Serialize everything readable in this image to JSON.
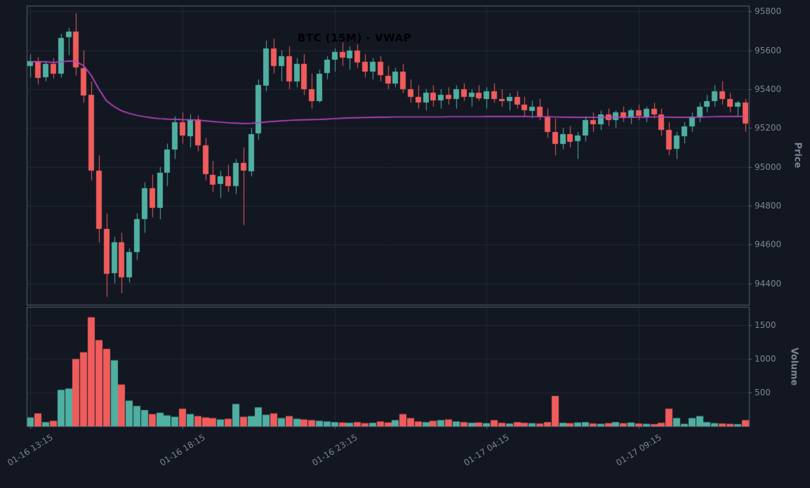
{
  "title": "BTC (15M) - VWAP",
  "colors": {
    "background": "#131722",
    "up": "#4fb0a2",
    "down": "#f05c5c",
    "vwap_line": "#b846c6",
    "grid": "#202836",
    "spine": "#596070",
    "tick_text": "#7d8494",
    "title_text": "#000000"
  },
  "chart_data": [
    {
      "type": "candlestick",
      "title": "BTC (15M) - VWAP",
      "ylabel": "Price",
      "ylabel_side": "right",
      "grid": true,
      "x_tick_labels": [
        "01-16 13:15",
        "01-16 18:15",
        "01-16 23:15",
        "01-17 04:15",
        "01-17 09:15"
      ],
      "x_tick_indices": [
        0,
        20,
        40,
        60,
        80
      ],
      "y_ticks": [
        94400,
        94600,
        94800,
        95000,
        95200,
        95400,
        95600,
        95800
      ],
      "ylim": [
        94290,
        95830
      ],
      "candles_ohlc": [
        [
          95520,
          95580,
          95460,
          95545
        ],
        [
          95545,
          95565,
          95425,
          95460
        ],
        [
          95460,
          95545,
          95440,
          95530
        ],
        [
          95530,
          95560,
          95455,
          95480
        ],
        [
          95480,
          95685,
          95460,
          95665
        ],
        [
          95665,
          95715,
          95575,
          95695
        ],
        [
          95695,
          95790,
          95470,
          95510
        ],
        [
          95510,
          95600,
          95330,
          95370
        ],
        [
          95370,
          95440,
          94930,
          94980
        ],
        [
          94980,
          95060,
          94610,
          94680
        ],
        [
          94680,
          94760,
          94330,
          94450
        ],
        [
          94450,
          94640,
          94400,
          94610
        ],
        [
          94610,
          94660,
          94350,
          94430
        ],
        [
          94430,
          94580,
          94405,
          94560
        ],
        [
          94560,
          94760,
          94520,
          94730
        ],
        [
          94730,
          94920,
          94660,
          94890
        ],
        [
          94890,
          94960,
          94740,
          94790
        ],
        [
          94790,
          95000,
          94730,
          94970
        ],
        [
          94970,
          95120,
          94900,
          95090
        ],
        [
          95090,
          95260,
          95040,
          95230
        ],
        [
          95230,
          95280,
          95120,
          95160
        ],
        [
          95160,
          95270,
          95100,
          95245
        ],
        [
          95245,
          95265,
          95080,
          95110
        ],
        [
          95110,
          95150,
          94930,
          94960
        ],
        [
          94960,
          95030,
          94870,
          94910
        ],
        [
          94910,
          94980,
          94840,
          94950
        ],
        [
          94950,
          95010,
          94870,
          94900
        ],
        [
          94900,
          95040,
          94860,
          95020
        ],
        [
          95020,
          95100,
          94700,
          94980
        ],
        [
          94980,
          95200,
          94950,
          95170
        ],
        [
          95170,
          95450,
          95140,
          95420
        ],
        [
          95420,
          95650,
          95390,
          95610
        ],
        [
          95610,
          95660,
          95480,
          95520
        ],
        [
          95520,
          95600,
          95440,
          95570
        ],
        [
          95570,
          95620,
          95400,
          95440
        ],
        [
          95440,
          95560,
          95410,
          95530
        ],
        [
          95530,
          95580,
          95370,
          95400
        ],
        [
          95400,
          95480,
          95300,
          95340
        ],
        [
          95340,
          95500,
          95330,
          95480
        ],
        [
          95480,
          95570,
          95450,
          95550
        ],
        [
          95550,
          95610,
          95490,
          95590
        ],
        [
          95590,
          95640,
          95520,
          95560
        ],
        [
          95560,
          95620,
          95500,
          95600
        ],
        [
          95600,
          95630,
          95510,
          95540
        ],
        [
          95540,
          95580,
          95460,
          95490
        ],
        [
          95490,
          95560,
          95450,
          95540
        ],
        [
          95540,
          95570,
          95440,
          95470
        ],
        [
          95470,
          95520,
          95400,
          95430
        ],
        [
          95430,
          95510,
          95410,
          95490
        ],
        [
          95490,
          95530,
          95380,
          95400
        ],
        [
          95400,
          95450,
          95330,
          95360
        ],
        [
          95360,
          95420,
          95300,
          95330
        ],
        [
          95330,
          95400,
          95290,
          95380
        ],
        [
          95380,
          95420,
          95310,
          95340
        ],
        [
          95340,
          95400,
          95300,
          95370
        ],
        [
          95370,
          95410,
          95320,
          95350
        ],
        [
          95350,
          95420,
          95300,
          95400
        ],
        [
          95400,
          95430,
          95340,
          95360
        ],
        [
          95360,
          95400,
          95310,
          95380
        ],
        [
          95380,
          95420,
          95340,
          95350
        ],
        [
          95350,
          95410,
          95300,
          95390
        ],
        [
          95390,
          95430,
          95330,
          95350
        ],
        [
          95350,
          95400,
          95310,
          95340
        ],
        [
          95340,
          95380,
          95290,
          95360
        ],
        [
          95360,
          95390,
          95300,
          95320
        ],
        [
          95320,
          95360,
          95260,
          95290
        ],
        [
          95290,
          95340,
          95250,
          95310
        ],
        [
          95310,
          95350,
          95240,
          95260
        ],
        [
          95260,
          95300,
          95150,
          95180
        ],
        [
          95180,
          95250,
          95060,
          95120
        ],
        [
          95120,
          95200,
          95090,
          95170
        ],
        [
          95170,
          95210,
          95100,
          95130
        ],
        [
          95130,
          95180,
          95040,
          95160
        ],
        [
          95160,
          95260,
          95130,
          95240
        ],
        [
          95240,
          95280,
          95180,
          95220
        ],
        [
          95220,
          95290,
          95190,
          95270
        ],
        [
          95270,
          95300,
          95210,
          95240
        ],
        [
          95240,
          95290,
          95200,
          95280
        ],
        [
          95280,
          95310,
          95230,
          95250
        ],
        [
          95250,
          95300,
          95220,
          95290
        ],
        [
          95290,
          95320,
          95240,
          95260
        ],
        [
          95260,
          95310,
          95230,
          95300
        ],
        [
          95300,
          95330,
          95250,
          95270
        ],
        [
          95270,
          95300,
          95160,
          95190
        ],
        [
          95190,
          95230,
          95060,
          95090
        ],
        [
          95090,
          95180,
          95040,
          95160
        ],
        [
          95160,
          95230,
          95120,
          95210
        ],
        [
          95210,
          95280,
          95180,
          95260
        ],
        [
          95260,
          95330,
          95230,
          95310
        ],
        [
          95310,
          95370,
          95280,
          95340
        ],
        [
          95340,
          95420,
          95310,
          95390
        ],
        [
          95390,
          95440,
          95320,
          95350
        ],
        [
          95350,
          95380,
          95280,
          95310
        ],
        [
          95310,
          95340,
          95260,
          95330
        ],
        [
          95330,
          95350,
          95180,
          95220
        ]
      ],
      "overlays": [
        {
          "name": "VWAP",
          "color_ref": "vwap_line",
          "values": [
            95540,
            95542,
            95540,
            95538,
            95540,
            95545,
            95542,
            95520,
            95470,
            95400,
            95340,
            95310,
            95288,
            95275,
            95265,
            95258,
            95252,
            95248,
            95246,
            95245,
            95243,
            95242,
            95240,
            95237,
            95233,
            95230,
            95227,
            95225,
            95223,
            95224,
            95227,
            95231,
            95234,
            95237,
            95239,
            95241,
            95242,
            95243,
            95244,
            95246,
            95248,
            95250,
            95252,
            95253,
            95254,
            95255,
            95256,
            95256,
            95257,
            95257,
            95257,
            95257,
            95257,
            95257,
            95257,
            95258,
            95258,
            95258,
            95258,
            95258,
            95259,
            95259,
            95259,
            95259,
            95259,
            95259,
            95258,
            95258,
            95258,
            95257,
            95256,
            95256,
            95255,
            95255,
            95255,
            95255,
            95255,
            95255,
            95256,
            95256,
            95256,
            95256,
            95257,
            95257,
            95256,
            95255,
            95255,
            95255,
            95256,
            95257,
            95258,
            95259,
            95259,
            95259,
            95259
          ]
        }
      ]
    },
    {
      "type": "bar",
      "ylabel": "Volume",
      "ylabel_side": "right",
      "grid": true,
      "y_ticks": [
        500,
        1000,
        1500
      ],
      "ylim": [
        0,
        1775
      ],
      "color_rule": "bar color follows candle up/down direction",
      "values": [
        130,
        190,
        60,
        80,
        540,
        560,
        1000,
        1100,
        1620,
        1280,
        1150,
        980,
        620,
        380,
        300,
        240,
        180,
        200,
        160,
        140,
        260,
        180,
        150,
        130,
        120,
        100,
        110,
        330,
        140,
        150,
        280,
        170,
        190,
        120,
        150,
        110,
        100,
        90,
        80,
        70,
        60,
        55,
        50,
        60,
        45,
        50,
        70,
        55,
        90,
        180,
        120,
        70,
        60,
        80,
        90,
        100,
        70,
        60,
        50,
        55,
        45,
        90,
        50,
        40,
        60,
        50,
        45,
        40,
        60,
        450,
        50,
        45,
        55,
        60,
        40,
        35,
        45,
        60,
        45,
        55,
        40,
        35,
        30,
        50,
        260,
        120,
        35,
        120,
        150,
        60,
        45,
        40,
        35,
        30,
        90
      ]
    }
  ]
}
